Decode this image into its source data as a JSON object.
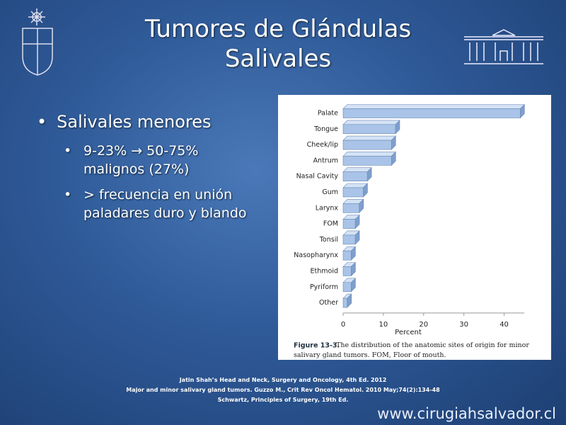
{
  "slide": {
    "title_lines": [
      "Tumores de Glándulas",
      "Salivales"
    ],
    "bullet": "Salivales menores",
    "sub_bullets": [
      "9-23% → 50-75% malignos (27%)",
      "> frecuencia en unión paladares duro y blando"
    ],
    "references": [
      "Jatin Shah’s Head and Neck, Surgery and Oncology, 4th Ed. 2012",
      "Major and minor salivary gland tumors. Guzzo M., Crit Rev Oncol Hematol. 2010 May;74(2):134-48",
      "Schwartz, Principles of Surgery, 19th Ed."
    ],
    "url": "www.cirugiahsalvador.cl"
  },
  "chart_data": {
    "type": "hbar",
    "categories": [
      "Palate",
      "Tongue",
      "Cheek/lip",
      "Antrum",
      "Nasal Cavity",
      "Gum",
      "Larynx",
      "FOM",
      "Tonsil",
      "Nasopharynx",
      "Ethmoid",
      "Pyriform",
      "Other"
    ],
    "values": [
      44,
      13,
      12,
      12,
      6,
      5,
      4,
      3,
      3,
      2,
      2,
      2,
      1
    ],
    "color": "#a9c4e8",
    "xlim": [
      0,
      45
    ],
    "xticks": [
      0,
      10,
      20,
      30,
      40
    ],
    "xlabel": "Percent",
    "caption_label": "Figure 13-3.",
    "caption": "The distribution of the anatomic sites of origin for minor salivary gland tumors. FOM, Floor of mouth."
  }
}
